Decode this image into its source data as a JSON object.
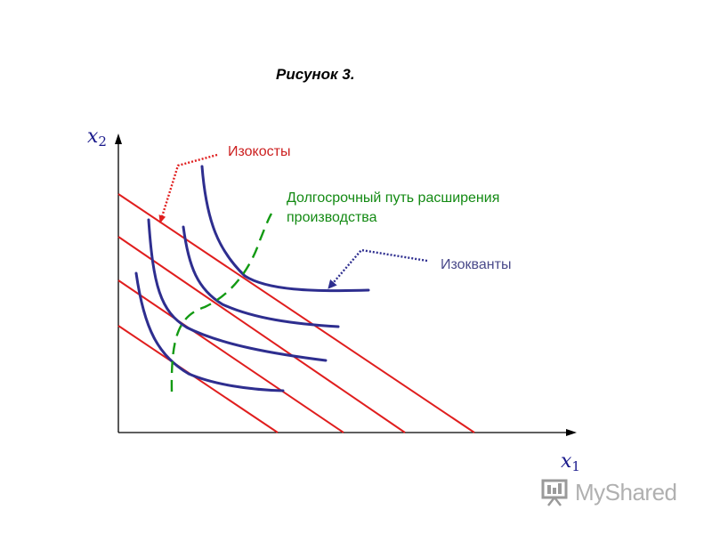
{
  "figure": {
    "title": "Рисунок 3."
  },
  "axes": {
    "y_label": "x",
    "y_sub": "2",
    "x_label": "x",
    "x_sub": "1"
  },
  "labels": {
    "isocosts": "Изокосты",
    "expansion_path_line1": "Долгосрочный путь расширения",
    "expansion_path_line2": "производства",
    "isoquants": "Изокванты"
  },
  "watermark": {
    "text": "MyShared"
  },
  "colors": {
    "axis": "#000000",
    "isocost": "#e01e1e",
    "isoquant": "#2e2e8f",
    "expansion_path": "#139a13",
    "isocost_label": "#cc2020",
    "expansion_label": "#138a13",
    "isoquant_label": "#4a4a8a"
  }
}
